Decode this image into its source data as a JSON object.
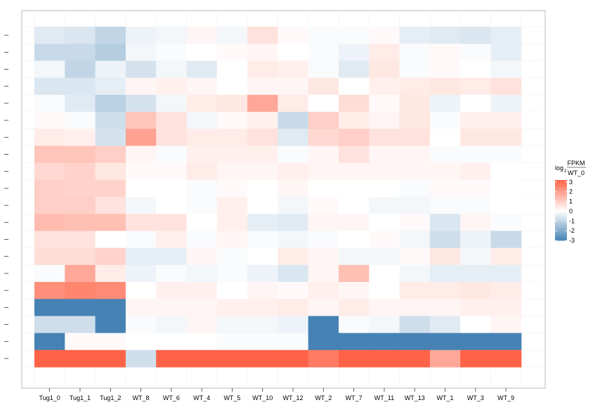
{
  "chart_data": {
    "type": "heatmap",
    "title": "",
    "xlabel": "",
    "ylabel": "",
    "columns": [
      "Tug1_0",
      "Tug1_1",
      "Tug1_2",
      "WT_8",
      "WT_6",
      "WT_4",
      "WT_5",
      "WT_10",
      "WT_12",
      "WT_2",
      "WT_7",
      "WT_11",
      "WT_13",
      "WT_1",
      "WT_3",
      "WT_9"
    ],
    "color_scale": {
      "low": "#4682b4",
      "mid": "#ffffff",
      "high": "#ff6347",
      "limits": [
        -3,
        3.2
      ],
      "breaks": [
        -3,
        -2,
        -1,
        0,
        1,
        2,
        3
      ],
      "break_labels": [
        "-3",
        "-2",
        "-1",
        "0",
        "1",
        "2",
        "3"
      ]
    },
    "legend": {
      "title_prefix": "log",
      "title_sub": "2",
      "title_num": "FPKM",
      "title_den": "WT_0",
      "placement": "right"
    },
    "grid": true,
    "rows": [
      [
        -0.5,
        -0.6,
        -1.0,
        -0.3,
        -0.2,
        0.2,
        -0.2,
        0.6,
        0.1,
        -0.1,
        -0.1,
        0.1,
        -0.4,
        -0.5,
        -0.6,
        -0.4
      ],
      [
        -0.9,
        -0.9,
        -1.2,
        -0.2,
        -0.1,
        0.0,
        0.1,
        0.2,
        0.0,
        -0.1,
        -0.3,
        0.4,
        -0.1,
        0.1,
        -0.1,
        -0.4
      ],
      [
        -0.2,
        -1.0,
        -0.3,
        -0.7,
        -0.2,
        -0.5,
        0.0,
        0.4,
        0.3,
        -0.1,
        -0.5,
        0.5,
        -0.1,
        0.1,
        0.0,
        -0.2
      ],
      [
        -0.6,
        -0.6,
        -0.4,
        0.2,
        0.3,
        0.2,
        0.0,
        0.2,
        0.2,
        0.5,
        0.0,
        0.3,
        0.4,
        0.5,
        0.4,
        0.6
      ],
      [
        -0.1,
        -0.5,
        -1.1,
        -0.7,
        -0.2,
        0.4,
        0.5,
        1.8,
        0.4,
        0.0,
        0.7,
        0.1,
        0.5,
        -0.3,
        0.0,
        -0.3
      ],
      [
        0.1,
        -0.1,
        -0.8,
        1.2,
        0.6,
        -0.2,
        0.1,
        0.3,
        -0.9,
        1.0,
        0.4,
        0.2,
        0.5,
        -0.1,
        0.3,
        0.3
      ],
      [
        0.4,
        0.3,
        -0.7,
        1.9,
        0.6,
        0.4,
        0.4,
        0.6,
        -0.5,
        0.8,
        1.0,
        0.6,
        0.6,
        0.0,
        0.5,
        0.5
      ],
      [
        1.2,
        1.2,
        1.0,
        0.2,
        -0.1,
        0.3,
        0.3,
        0.3,
        -0.1,
        0.2,
        0.6,
        0.2,
        0.2,
        -0.1,
        -0.1,
        -0.1
      ],
      [
        0.8,
        0.9,
        0.5,
        0.1,
        0.1,
        0.4,
        0.2,
        0.2,
        0.3,
        0.2,
        0.2,
        0.2,
        0.2,
        0.2,
        0.3,
        0.0
      ],
      [
        1.0,
        0.9,
        0.9,
        0.0,
        0.0,
        -0.1,
        0.1,
        0.0,
        0.2,
        0.0,
        0.0,
        0.0,
        -0.1,
        0.1,
        0.1,
        0.0
      ],
      [
        1.0,
        1.0,
        0.6,
        -0.2,
        0.0,
        -0.1,
        0.3,
        0.0,
        -0.2,
        0.1,
        0.0,
        -0.2,
        -0.2,
        -0.1,
        -0.1,
        0.0
      ],
      [
        1.4,
        1.3,
        1.3,
        0.6,
        0.6,
        0.0,
        0.3,
        -0.4,
        -0.5,
        0.2,
        0.2,
        0.0,
        0.1,
        -0.6,
        0.2,
        -0.1
      ],
      [
        0.6,
        0.6,
        0.0,
        -0.1,
        0.3,
        -0.1,
        0.2,
        -0.1,
        -0.2,
        -0.1,
        0.0,
        0.1,
        -0.2,
        -0.8,
        -0.3,
        -0.9
      ],
      [
        0.7,
        0.7,
        0.9,
        -0.4,
        -0.4,
        0.2,
        -0.1,
        0.0,
        0.4,
        0.2,
        -0.2,
        -0.2,
        0.1,
        0.5,
        -0.2,
        0.4
      ],
      [
        -0.1,
        1.8,
        0.4,
        -0.3,
        -0.1,
        -0.2,
        -0.1,
        -0.3,
        -0.6,
        0.2,
        1.3,
        0.0,
        -0.2,
        -0.4,
        -0.4,
        -0.4
      ],
      [
        2.3,
        2.5,
        2.4,
        0.0,
        0.3,
        0.3,
        0.0,
        0.2,
        0.1,
        0.3,
        0.2,
        0.0,
        0.4,
        0.4,
        0.5,
        0.4
      ],
      [
        -3.0,
        -3.0,
        -3.0,
        0.2,
        0.2,
        0.2,
        0.3,
        0.3,
        0.4,
        0.2,
        0.4,
        0.2,
        0.2,
        0.2,
        0.3,
        0.3
      ],
      [
        -0.8,
        -0.8,
        -3.0,
        -0.1,
        -0.2,
        0.2,
        -0.2,
        -0.2,
        -0.3,
        -3.0,
        -0.1,
        -0.2,
        -0.8,
        -0.5,
        0.0,
        0.2
      ],
      [
        -3.0,
        0.1,
        0.1,
        0.0,
        0.0,
        0.0,
        -0.1,
        -0.1,
        -0.1,
        -3.0,
        -3.0,
        -3.0,
        -3.0,
        -3.0,
        -3.0,
        -3.0
      ],
      [
        3.2,
        3.2,
        3.2,
        -0.8,
        3.2,
        3.2,
        3.2,
        3.2,
        3.2,
        2.7,
        3.2,
        3.2,
        3.2,
        1.8,
        3.2,
        3.2
      ]
    ]
  }
}
